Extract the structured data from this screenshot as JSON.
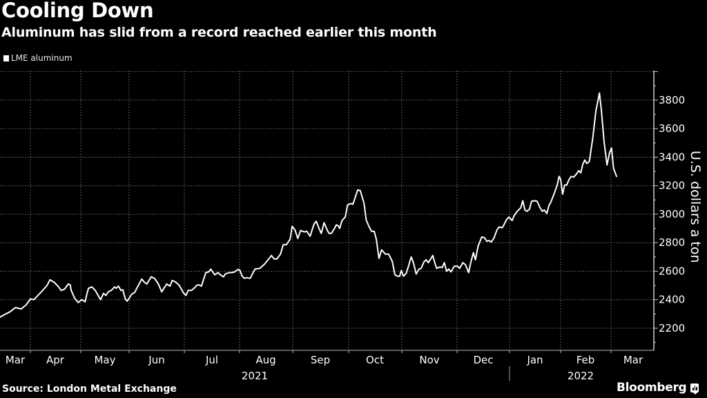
{
  "header": {
    "title": "Cooling Down",
    "subtitle": "Aluminum has slid from a record reached earlier this month"
  },
  "legend": {
    "label": "LME aluminum",
    "color": "#ffffff"
  },
  "footer": {
    "source": "Source: London Metal Exchange",
    "brand": "Bloomberg"
  },
  "chart_data": {
    "type": "line",
    "title": "Cooling Down",
    "subtitle": "Aluminum has slid from a record reached earlier this month",
    "xlabel": "",
    "ylabel": "U.S. dollars a ton",
    "ylim": [
      2050,
      4000
    ],
    "y_ticks": [
      2200,
      2400,
      2600,
      2800,
      3000,
      3200,
      3400,
      3600,
      3800
    ],
    "x_ticks": [
      "Mar",
      "Apr",
      "May",
      "Jun",
      "Jul",
      "Aug",
      "Sep",
      "Oct",
      "Nov",
      "Dec",
      "Jan",
      "Feb",
      "Mar"
    ],
    "year_labels": [
      {
        "label": "2021",
        "under": "Aug"
      },
      {
        "label": "2022",
        "under": "Feb"
      }
    ],
    "grid": true,
    "legend_position": "top-left",
    "axis_position": "right",
    "series": [
      {
        "name": "LME aluminum",
        "color": "#ffffff",
        "points_note": "x = month index (0 = start of Mar 2021, 12 = start of Mar 2022), y = USD/ton",
        "points": [
          [
            -0.42,
            2225
          ],
          [
            -0.36,
            2205
          ],
          [
            -0.25,
            2260
          ],
          [
            -0.18,
            2270
          ],
          [
            -0.11,
            2230
          ],
          [
            0.0,
            2290
          ],
          [
            0.08,
            2250
          ],
          [
            0.19,
            2215
          ],
          [
            0.3,
            2262
          ],
          [
            0.38,
            2272
          ],
          [
            0.49,
            2295
          ],
          [
            0.6,
            2315
          ],
          [
            0.71,
            2345
          ],
          [
            0.82,
            2335
          ],
          [
            0.92,
            2365
          ],
          [
            1.0,
            2405
          ],
          [
            1.07,
            2400
          ],
          [
            1.15,
            2430
          ],
          [
            1.23,
            2460
          ],
          [
            1.33,
            2500
          ],
          [
            1.39,
            2540
          ],
          [
            1.48,
            2520
          ],
          [
            1.56,
            2490
          ],
          [
            1.61,
            2465
          ],
          [
            1.68,
            2475
          ],
          [
            1.75,
            2510
          ],
          [
            1.79,
            2505
          ],
          [
            1.81,
            2465
          ],
          [
            1.88,
            2410
          ],
          [
            1.95,
            2380
          ],
          [
            2.02,
            2400
          ],
          [
            2.09,
            2385
          ],
          [
            2.13,
            2445
          ],
          [
            2.16,
            2480
          ],
          [
            2.23,
            2490
          ],
          [
            2.3,
            2465
          ],
          [
            2.35,
            2435
          ],
          [
            2.41,
            2400
          ],
          [
            2.47,
            2445
          ],
          [
            2.52,
            2430
          ],
          [
            2.57,
            2455
          ],
          [
            2.63,
            2465
          ],
          [
            2.7,
            2490
          ],
          [
            2.73,
            2480
          ],
          [
            2.78,
            2495
          ],
          [
            2.83,
            2465
          ],
          [
            2.87,
            2470
          ],
          [
            2.92,
            2405
          ],
          [
            2.96,
            2390
          ],
          [
            3.0,
            2410
          ],
          [
            3.05,
            2440
          ],
          [
            3.1,
            2450
          ],
          [
            3.16,
            2495
          ],
          [
            3.23,
            2545
          ],
          [
            3.27,
            2525
          ],
          [
            3.32,
            2510
          ],
          [
            3.4,
            2560
          ],
          [
            3.46,
            2550
          ],
          [
            3.53,
            2510
          ],
          [
            3.59,
            2455
          ],
          [
            3.63,
            2480
          ],
          [
            3.68,
            2510
          ],
          [
            3.74,
            2495
          ],
          [
            3.78,
            2535
          ],
          [
            3.84,
            2525
          ],
          [
            3.91,
            2500
          ],
          [
            3.98,
            2450
          ],
          [
            4.03,
            2430
          ],
          [
            4.07,
            2465
          ],
          [
            4.13,
            2465
          ],
          [
            4.19,
            2485
          ],
          [
            4.22,
            2500
          ],
          [
            4.26,
            2505
          ],
          [
            4.31,
            2495
          ],
          [
            4.35,
            2545
          ],
          [
            4.39,
            2590
          ],
          [
            4.44,
            2595
          ],
          [
            4.48,
            2615
          ],
          [
            4.52,
            2590
          ],
          [
            4.55,
            2575
          ],
          [
            4.61,
            2590
          ],
          [
            4.65,
            2575
          ],
          [
            4.71,
            2560
          ],
          [
            4.74,
            2580
          ],
          [
            4.81,
            2590
          ],
          [
            4.87,
            2590
          ],
          [
            4.91,
            2595
          ],
          [
            4.96,
            2610
          ],
          [
            5.0,
            2610
          ],
          [
            5.05,
            2565
          ],
          [
            5.09,
            2550
          ],
          [
            5.14,
            2555
          ],
          [
            5.2,
            2550
          ],
          [
            5.29,
            2615
          ],
          [
            5.38,
            2620
          ],
          [
            5.47,
            2650
          ],
          [
            5.6,
            2710
          ],
          [
            5.65,
            2685
          ],
          [
            5.7,
            2685
          ],
          [
            5.77,
            2720
          ],
          [
            5.82,
            2785
          ],
          [
            5.88,
            2785
          ],
          [
            5.95,
            2825
          ],
          [
            5.99,
            2915
          ],
          [
            6.04,
            2890
          ],
          [
            6.09,
            2830
          ],
          [
            6.14,
            2885
          ],
          [
            6.21,
            2875
          ],
          [
            6.25,
            2880
          ],
          [
            6.31,
            2845
          ],
          [
            6.38,
            2930
          ],
          [
            6.42,
            2950
          ],
          [
            6.47,
            2900
          ],
          [
            6.51,
            2865
          ],
          [
            6.56,
            2940
          ],
          [
            6.62,
            2885
          ],
          [
            6.65,
            2865
          ],
          [
            6.69,
            2865
          ],
          [
            6.74,
            2895
          ],
          [
            6.78,
            2925
          ],
          [
            6.81,
            2920
          ],
          [
            6.84,
            2900
          ],
          [
            6.88,
            2955
          ],
          [
            6.94,
            2980
          ],
          [
            6.98,
            3065
          ],
          [
            7.04,
            3075
          ],
          [
            7.08,
            3070
          ],
          [
            7.13,
            3125
          ],
          [
            7.17,
            3170
          ],
          [
            7.22,
            3165
          ],
          [
            7.29,
            3075
          ],
          [
            7.33,
            2960
          ],
          [
            7.38,
            2915
          ],
          [
            7.43,
            2880
          ],
          [
            7.48,
            2880
          ],
          [
            7.52,
            2825
          ],
          [
            7.57,
            2690
          ],
          [
            7.62,
            2750
          ],
          [
            7.69,
            2720
          ],
          [
            7.75,
            2720
          ],
          [
            7.82,
            2670
          ],
          [
            7.87,
            2575
          ],
          [
            7.92,
            2565
          ],
          [
            7.96,
            2565
          ],
          [
            7.99,
            2605
          ],
          [
            8.03,
            2565
          ],
          [
            8.08,
            2585
          ],
          [
            8.12,
            2635
          ],
          [
            8.17,
            2700
          ],
          [
            8.21,
            2660
          ],
          [
            8.26,
            2580
          ],
          [
            8.31,
            2615
          ],
          [
            8.35,
            2620
          ],
          [
            8.4,
            2665
          ],
          [
            8.44,
            2680
          ],
          [
            8.48,
            2660
          ],
          [
            8.53,
            2690
          ],
          [
            8.56,
            2710
          ],
          [
            8.6,
            2655
          ],
          [
            8.63,
            2620
          ],
          [
            8.69,
            2630
          ],
          [
            8.73,
            2625
          ],
          [
            8.77,
            2660
          ],
          [
            8.81,
            2600
          ],
          [
            8.85,
            2615
          ],
          [
            8.89,
            2595
          ],
          [
            8.95,
            2635
          ],
          [
            9.01,
            2635
          ],
          [
            9.05,
            2620
          ],
          [
            9.11,
            2660
          ],
          [
            9.16,
            2645
          ],
          [
            9.22,
            2590
          ],
          [
            9.26,
            2660
          ],
          [
            9.31,
            2730
          ],
          [
            9.35,
            2680
          ],
          [
            9.4,
            2775
          ],
          [
            9.47,
            2840
          ],
          [
            9.52,
            2835
          ],
          [
            9.57,
            2810
          ],
          [
            9.61,
            2815
          ],
          [
            9.65,
            2805
          ],
          [
            9.7,
            2830
          ],
          [
            9.76,
            2890
          ],
          [
            9.8,
            2910
          ],
          [
            9.86,
            2905
          ],
          [
            9.9,
            2930
          ],
          [
            9.94,
            2960
          ],
          [
            9.99,
            2980
          ],
          [
            10.05,
            2955
          ],
          [
            10.09,
            2990
          ],
          [
            10.15,
            3020
          ],
          [
            10.22,
            3045
          ],
          [
            10.26,
            3095
          ],
          [
            10.3,
            3030
          ],
          [
            10.34,
            3020
          ],
          [
            10.39,
            3035
          ],
          [
            10.43,
            3090
          ],
          [
            10.49,
            3095
          ],
          [
            10.54,
            3090
          ],
          [
            10.59,
            3050
          ],
          [
            10.64,
            3020
          ],
          [
            10.68,
            3030
          ],
          [
            10.73,
            3005
          ],
          [
            10.77,
            3060
          ],
          [
            10.81,
            3085
          ],
          [
            10.88,
            3150
          ],
          [
            10.93,
            3200
          ],
          [
            10.97,
            3265
          ],
          [
            11.0,
            3245
          ],
          [
            11.04,
            3140
          ],
          [
            11.08,
            3205
          ],
          [
            11.12,
            3205
          ],
          [
            11.17,
            3245
          ],
          [
            11.21,
            3265
          ],
          [
            11.26,
            3260
          ],
          [
            11.32,
            3285
          ],
          [
            11.36,
            3305
          ],
          [
            11.4,
            3290
          ],
          [
            11.44,
            3350
          ],
          [
            11.48,
            3380
          ],
          [
            11.52,
            3355
          ],
          [
            11.57,
            3370
          ],
          [
            11.64,
            3540
          ],
          [
            11.7,
            3725
          ],
          [
            11.77,
            3850
          ],
          [
            11.81,
            3725
          ],
          [
            11.86,
            3515
          ],
          [
            11.92,
            3345
          ],
          [
            11.97,
            3430
          ],
          [
            12.01,
            3465
          ],
          [
            12.05,
            3320
          ],
          [
            12.11,
            3265
          ]
        ]
      }
    ]
  },
  "y_axis": {
    "title": "U.S. dollars a ton",
    "ticks": [
      "3800",
      "3600",
      "3400",
      "3200",
      "3000",
      "2800",
      "2600",
      "2400",
      "2200"
    ]
  },
  "x_axis": {
    "months": [
      "Mar",
      "Apr",
      "May",
      "Jun",
      "Jul",
      "Aug",
      "Sep",
      "Oct",
      "Nov",
      "Dec",
      "Jan",
      "Feb",
      "Mar"
    ],
    "years": [
      "2021",
      "2022"
    ]
  }
}
